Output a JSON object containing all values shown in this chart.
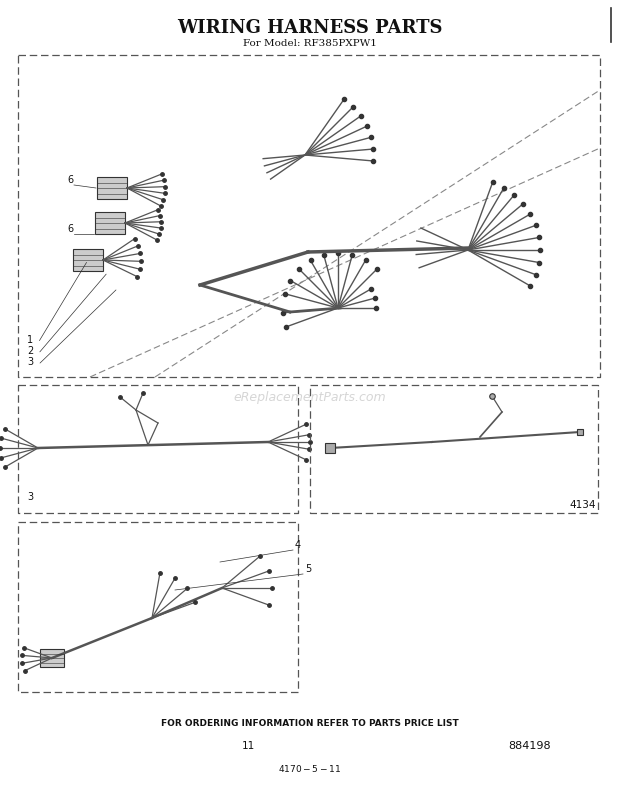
{
  "title": "WIRING HARNESS PARTS",
  "subtitle": "For Model: RF385PXPW1",
  "footer_text": "FOR ORDERING INFORMATION REFER TO PARTS PRICE LIST",
  "page_number": "11",
  "part_number": "884198",
  "doc_code": "4134",
  "bg_color": "#ffffff",
  "border_color": "#333333",
  "text_color": "#111111",
  "labels": [
    "1",
    "2",
    "3",
    "4",
    "5",
    "6"
  ],
  "watermark": "eReplacementParts.com"
}
